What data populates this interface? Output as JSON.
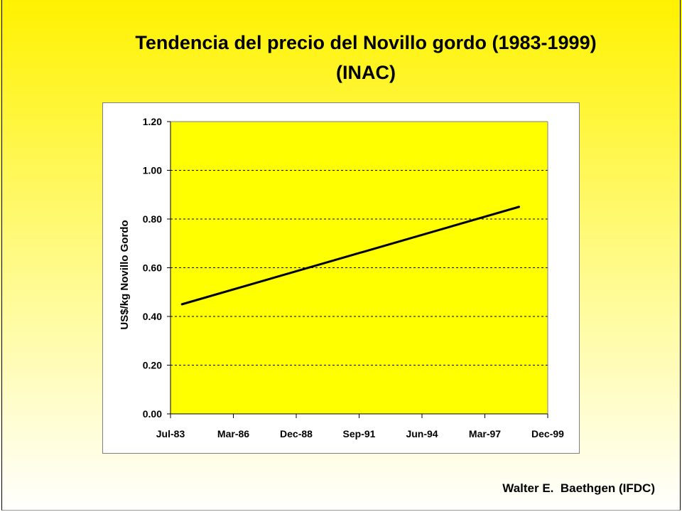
{
  "slide": {
    "title_line1": "Tendencia del precio del Novillo gordo (1983-1999)",
    "title_line2": "(INAC)",
    "credit": "Walter E.  Baethgen (IFDC)"
  },
  "colors": {
    "plot_area": "#ffff00",
    "line": "#000000",
    "gridline": "#000000"
  },
  "chart_data": {
    "type": "line",
    "title": "Tendencia del precio del Novillo gordo (1983-1999)",
    "subtitle": "(INAC)",
    "ylabel": "US$/kg Novillo Gordo",
    "xlabel": "",
    "x_ticks": [
      "Jul-83",
      "Mar-86",
      "Dec-88",
      "Sep-91",
      "Jun-94",
      "Mar-97",
      "Dec-99"
    ],
    "y_ticks": [
      "0.00",
      "0.20",
      "0.40",
      "0.60",
      "0.80",
      "1.00",
      "1.20"
    ],
    "ylim": [
      0,
      1.2
    ],
    "xlim": [
      "1983-07",
      "1999-12"
    ],
    "grid": "horizontal dashed",
    "series": [
      {
        "x": [
          "1984-01",
          "1998-09"
        ],
        "y": [
          0.45,
          0.85
        ]
      }
    ]
  }
}
